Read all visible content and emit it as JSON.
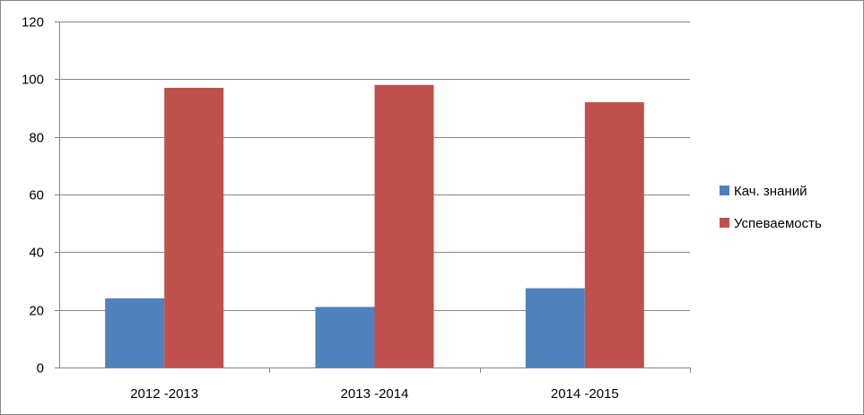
{
  "chart_data": {
    "type": "bar",
    "title": "",
    "xlabel": "",
    "ylabel": "",
    "categories": [
      "2012 -2013",
      "2013 -2014",
      "2014 -2015"
    ],
    "series": [
      {
        "name": "Кач. знаний",
        "values": [
          24,
          21,
          27.5
        ],
        "color": "#4F81BD"
      },
      {
        "name": "Успеваемость",
        "values": [
          97,
          98,
          92
        ],
        "color": "#C0504D"
      }
    ],
    "ylim": [
      0,
      120
    ],
    "yticks": [
      0,
      20,
      40,
      60,
      80,
      100,
      120
    ],
    "grid": true,
    "legend_position": "right"
  }
}
